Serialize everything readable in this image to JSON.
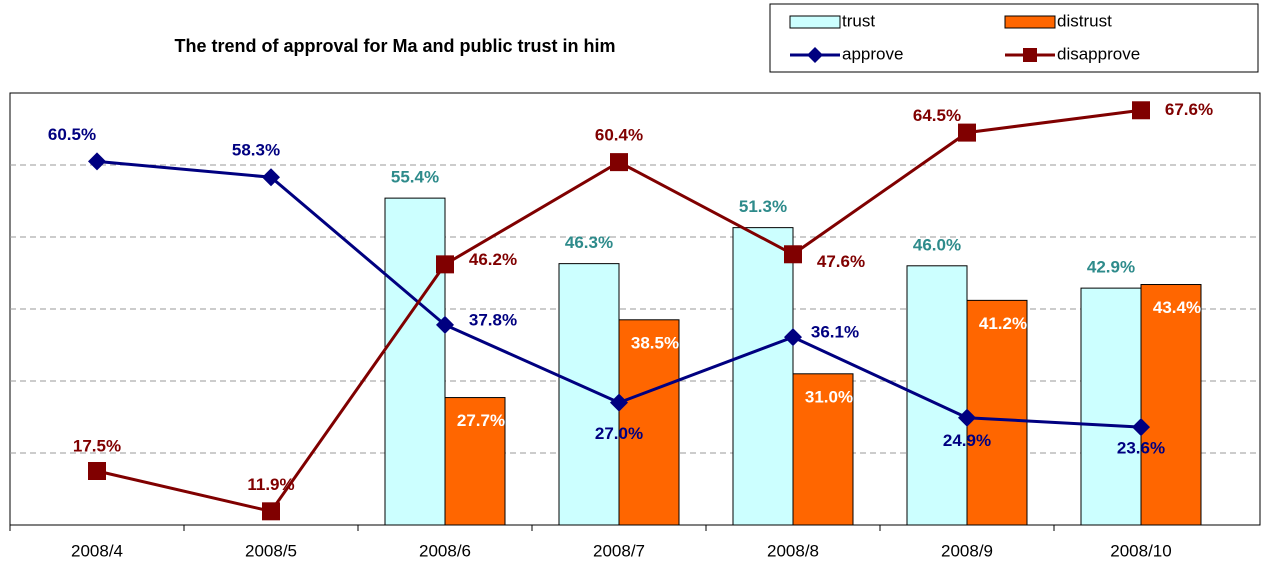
{
  "chart_data": {
    "type": "bar-line",
    "title": "The trend of approval for Ma and public trust in him",
    "categories": [
      "2008/4",
      "2008/5",
      "2008/6",
      "2008/7",
      "2008/8",
      "2008/9",
      "2008/10"
    ],
    "ylim": [
      10,
      70
    ],
    "yticks": [
      20,
      30,
      40,
      50,
      60
    ],
    "grid": true,
    "legend": "top-right",
    "series": [
      {
        "name": "trust",
        "kind": "bar",
        "color": "#ccffff",
        "label_color": "#2e8b8b",
        "values": [
          null,
          null,
          55.4,
          46.3,
          51.3,
          46.0,
          42.9
        ],
        "value_labels": [
          null,
          null,
          "55.4%",
          "46.3%",
          "51.3%",
          "46.0%",
          "42.9%"
        ]
      },
      {
        "name": "distrust",
        "kind": "bar",
        "color": "#ff6600",
        "label_color": "#ffffff",
        "values": [
          null,
          null,
          27.7,
          38.5,
          31.0,
          41.2,
          43.4
        ],
        "value_labels": [
          null,
          null,
          "27.7%",
          "38.5%",
          "31.0%",
          "41.2%",
          "43.4%"
        ]
      },
      {
        "name": "approve",
        "kind": "line",
        "color": "#000080",
        "label_color": "#000080",
        "values": [
          60.5,
          58.3,
          37.8,
          27.0,
          36.1,
          24.9,
          23.6
        ],
        "value_labels": [
          "60.5%",
          "58.3%",
          "37.8%",
          "27.0%",
          "36.1%",
          "24.9%",
          "23.6%"
        ]
      },
      {
        "name": "disapprove",
        "kind": "line",
        "color": "#800000",
        "label_color": "#800000",
        "values": [
          17.5,
          11.9,
          46.2,
          60.4,
          47.6,
          64.5,
          67.6
        ],
        "value_labels": [
          "17.5%",
          "11.9%",
          "46.2%",
          "60.4%",
          "47.6%",
          "64.5%",
          "67.6%"
        ]
      }
    ]
  }
}
